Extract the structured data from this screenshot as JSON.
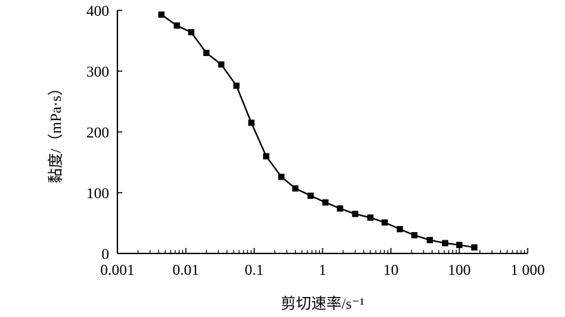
{
  "chart_data": {
    "type": "line",
    "title": "",
    "xlabel": "剪切速率/s⁻¹",
    "ylabel": "黏度/（mPa·s）",
    "xscale": "log",
    "xlim": [
      0.001,
      1000
    ],
    "ylim": [
      0,
      400
    ],
    "xticks": [
      0.001,
      0.01,
      0.1,
      1,
      10,
      100,
      1000
    ],
    "xtick_labels": [
      "0.001",
      "0.01",
      "0.1",
      "1",
      "10",
      "100",
      "1 000"
    ],
    "yticks": [
      0,
      100,
      200,
      300,
      400
    ],
    "ytick_labels": [
      "0",
      "100",
      "200",
      "300",
      "400"
    ],
    "grid": false,
    "marker": "square",
    "color": "#000000",
    "series": [
      {
        "x": [
          0.0044,
          0.0074,
          0.012,
          0.02,
          0.033,
          0.055,
          0.091,
          0.15,
          0.25,
          0.4,
          0.67,
          1.1,
          1.8,
          3.0,
          5.0,
          8.1,
          13.5,
          22,
          37,
          62,
          100,
          166
        ],
        "y": [
          393,
          375,
          364,
          330,
          311,
          276,
          215,
          160,
          126,
          107,
          95,
          84,
          74,
          65,
          59,
          51,
          40,
          30,
          22,
          17,
          14,
          10
        ]
      }
    ]
  }
}
